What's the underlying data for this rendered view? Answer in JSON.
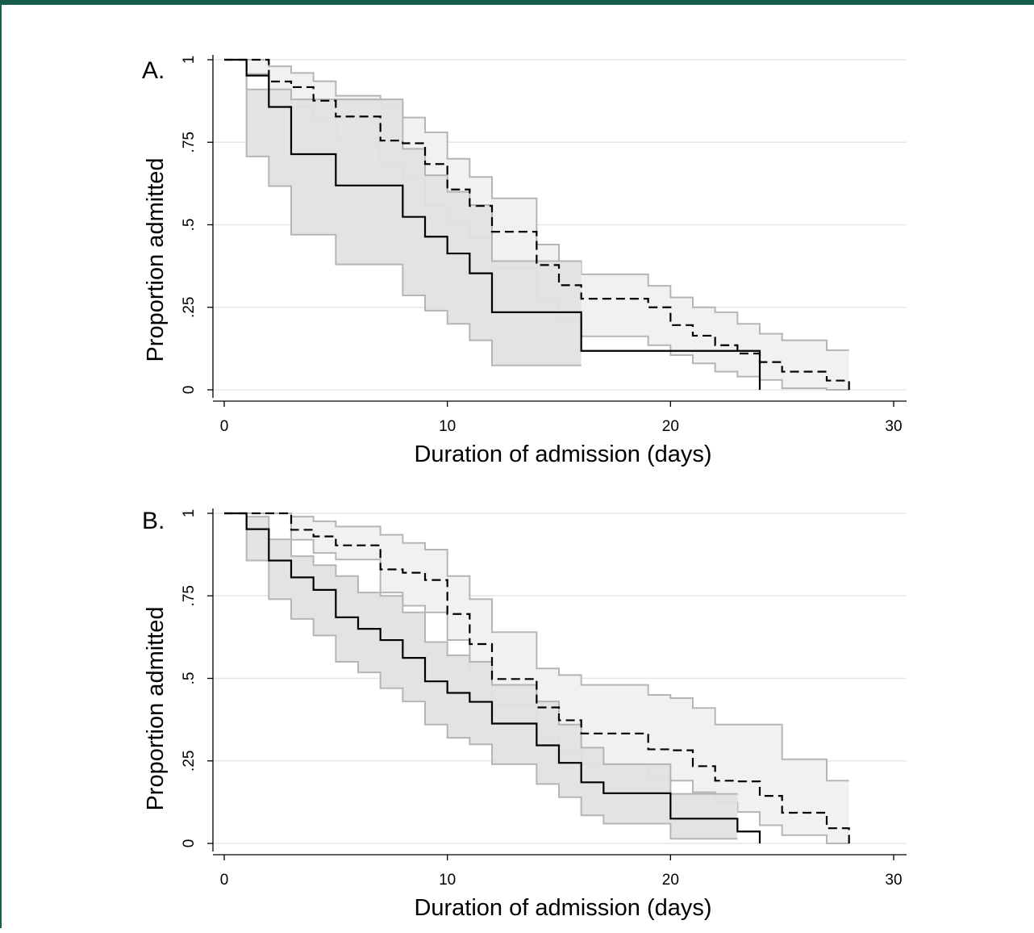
{
  "colors": {
    "frame": "#165E4A",
    "ci_band_fill_light": "#f0f0f0",
    "ci_band_fill_dark": "#e2e2e2",
    "ci_band_edge": "#b5b5b5",
    "gridline": "#e6e6e6",
    "curve": "#000000"
  },
  "chart_data": [
    {
      "type": "line",
      "panel_label": "A.",
      "xlabel": "Duration of admission (days)",
      "ylabel": "Proportion admitted",
      "xlim": [
        0,
        30
      ],
      "ylim": [
        0,
        1
      ],
      "xticks": [
        0,
        10,
        20,
        30
      ],
      "xtick_labels": [
        "0",
        "10",
        "20",
        "30"
      ],
      "yticks": [
        0,
        0.25,
        0.5,
        0.75,
        1
      ],
      "ytick_labels": [
        "0",
        ".25",
        ".5",
        ".75",
        "1"
      ],
      "grid": true,
      "legend": "none",
      "series": [
        {
          "style": "solid",
          "x": [
            0,
            1,
            2,
            3,
            5,
            8,
            9,
            10,
            11,
            12,
            16,
            24
          ],
          "y": [
            1,
            0.952,
            0.857,
            0.714,
            0.619,
            0.524,
            0.464,
            0.413,
            0.353,
            0.235,
            0.118,
            0
          ],
          "ci_lower": [
            1,
            0.707,
            0.617,
            0.47,
            0.38,
            0.286,
            0.24,
            0.2,
            0.15,
            0.074,
            0.074,
            0.074
          ],
          "ci_upper": [
            1,
            0.91,
            0.91,
            0.88,
            0.88,
            0.73,
            0.65,
            0.6,
            0.56,
            0.39,
            0.39,
            0.39
          ],
          "ci_end_x": 16
        },
        {
          "style": "dashed",
          "x": [
            0,
            1,
            2,
            3,
            4,
            5,
            7,
            8,
            9,
            10,
            11,
            12,
            14,
            15,
            16,
            19,
            20,
            21,
            22,
            23,
            24,
            25,
            27,
            28
          ],
          "y": [
            1,
            1,
            0.934,
            0.917,
            0.876,
            0.828,
            0.755,
            0.747,
            0.684,
            0.607,
            0.557,
            0.479,
            0.378,
            0.317,
            0.276,
            0.25,
            0.196,
            0.164,
            0.135,
            0.11,
            0.084,
            0.055,
            0.028,
            0
          ],
          "ci_lower": [
            1,
            0.957,
            0.909,
            0.858,
            0.822,
            0.75,
            0.68,
            0.64,
            0.56,
            0.51,
            0.46,
            0.37,
            0.27,
            0.21,
            0.162,
            0.135,
            0.105,
            0.08,
            0.055,
            0.04,
            0.03,
            0.005,
            0,
            0
          ],
          "ci_upper": [
            1,
            1,
            0.98,
            0.96,
            0.935,
            0.891,
            0.86,
            0.825,
            0.78,
            0.7,
            0.645,
            0.58,
            0.44,
            0.39,
            0.35,
            0.315,
            0.28,
            0.25,
            0.235,
            0.2,
            0.17,
            0.15,
            0.12,
            0.12
          ],
          "ci_end_x": 28
        }
      ]
    },
    {
      "type": "line",
      "panel_label": "B.",
      "xlabel": "Duration of admission (days)",
      "ylabel": "Proportion admitted",
      "xlim": [
        0,
        30
      ],
      "ylim": [
        0,
        1
      ],
      "xticks": [
        0,
        10,
        20,
        30
      ],
      "xtick_labels": [
        "0",
        "10",
        "20",
        "30"
      ],
      "yticks": [
        0,
        0.25,
        0.5,
        0.75,
        1
      ],
      "ytick_labels": [
        "0",
        ".25",
        ".5",
        ".75",
        "1"
      ],
      "grid": true,
      "legend": "none",
      "series": [
        {
          "style": "solid",
          "x": [
            0,
            1,
            2,
            3,
            4,
            5,
            6,
            7,
            8,
            9,
            10,
            11,
            12,
            14,
            15,
            16,
            17,
            20,
            23,
            24
          ],
          "y": [
            1,
            0.952,
            0.857,
            0.806,
            0.768,
            0.685,
            0.65,
            0.616,
            0.562,
            0.491,
            0.456,
            0.429,
            0.363,
            0.297,
            0.244,
            0.185,
            0.152,
            0.075,
            0.036,
            0
          ],
          "ci_lower": [
            1,
            0.857,
            0.74,
            0.68,
            0.63,
            0.55,
            0.518,
            0.47,
            0.43,
            0.36,
            0.32,
            0.3,
            0.24,
            0.18,
            0.14,
            0.085,
            0.06,
            0.014,
            0.014,
            0.014
          ],
          "ci_upper": [
            1,
            0.99,
            0.921,
            0.87,
            0.843,
            0.81,
            0.76,
            0.75,
            0.7,
            0.61,
            0.57,
            0.55,
            0.48,
            0.43,
            0.36,
            0.29,
            0.24,
            0.15,
            0.15,
            0.15
          ],
          "ci_end_x": 23
        },
        {
          "style": "dashed",
          "x": [
            0,
            3,
            4,
            5,
            7,
            8,
            9,
            10,
            11,
            12,
            14,
            15,
            16,
            19,
            20,
            21,
            22,
            23,
            24,
            25,
            27,
            28
          ],
          "y": [
            1,
            0.95,
            0.93,
            0.903,
            0.83,
            0.82,
            0.798,
            0.695,
            0.604,
            0.498,
            0.412,
            0.373,
            0.333,
            0.285,
            0.282,
            0.234,
            0.19,
            0.188,
            0.144,
            0.093,
            0.046,
            0
          ],
          "ci_lower": [
            1,
            0.92,
            0.88,
            0.86,
            0.76,
            0.72,
            0.7,
            0.616,
            0.52,
            0.418,
            0.32,
            0.28,
            0.24,
            0.2,
            0.19,
            0.155,
            0.125,
            0.095,
            0.055,
            0.025,
            0,
            0
          ],
          "ci_upper": [
            1,
            0.99,
            0.976,
            0.96,
            0.935,
            0.91,
            0.89,
            0.81,
            0.74,
            0.64,
            0.53,
            0.51,
            0.48,
            0.45,
            0.44,
            0.41,
            0.36,
            0.36,
            0.36,
            0.255,
            0.19,
            0.19
          ],
          "ci_end_x": 28
        }
      ]
    }
  ]
}
